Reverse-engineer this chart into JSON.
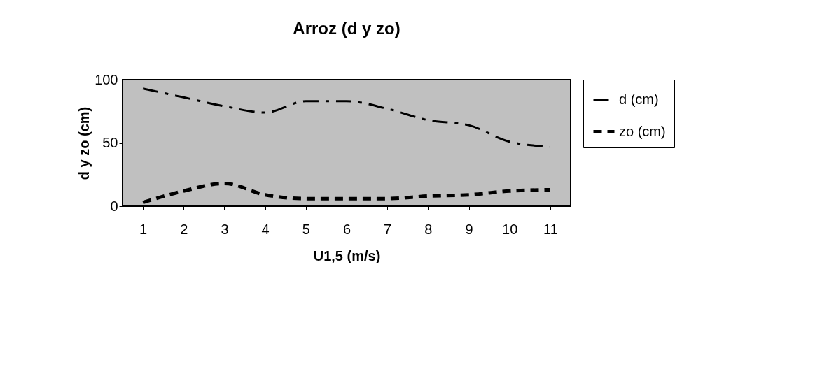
{
  "chart_data": {
    "type": "line",
    "title": "Arroz (d y zo)",
    "xlabel": "U1,5 (m/s)",
    "ylabel": "d y zo (cm)",
    "categories": [
      "1",
      "2",
      "3",
      "4",
      "5",
      "6",
      "7",
      "8",
      "9",
      "10",
      "11"
    ],
    "series": [
      {
        "name": "d (cm)",
        "color": "#000000",
        "line_style": "dashed",
        "values": [
          93,
          86,
          79,
          74,
          83,
          83,
          77,
          68,
          64,
          51,
          47
        ]
      },
      {
        "name": "zo (cm)",
        "color": "#000000",
        "line_style": "dashed",
        "values": [
          3,
          12,
          18,
          9,
          6,
          6,
          6,
          8,
          9,
          12,
          13
        ]
      }
    ],
    "ylim": [
      0,
      100
    ],
    "yticks": [
      0,
      50,
      100
    ],
    "grid": false,
    "legend": "right",
    "marker": "none"
  }
}
